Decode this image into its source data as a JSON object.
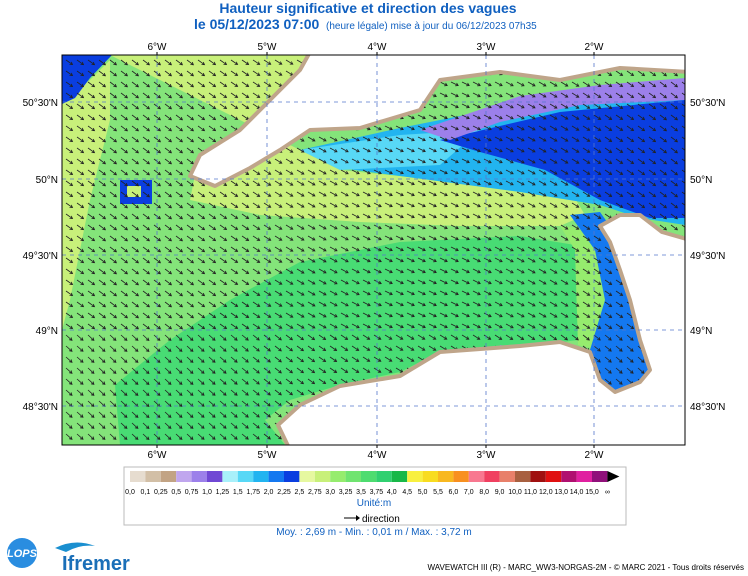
{
  "header": {
    "title": "Hauteur significative et direction des vagues",
    "date": "le 05/12/2023 07:00",
    "update_note": "(heure légale) mise à jour du 06/12/2023 07h35"
  },
  "map": {
    "longitude_labels": [
      "6°W",
      "5°W",
      "4°W",
      "3°W",
      "2°W"
    ],
    "latitude_labels": [
      "50°30'N",
      "50°N",
      "49°30'N",
      "49°N",
      "48°30'N"
    ]
  },
  "legend": {
    "labels": [
      "0,0",
      "0,1",
      "0,25",
      "0,5",
      "0,75",
      "1,0",
      "1,25",
      "1,5",
      "1,75",
      "2,0",
      "2,25",
      "2,5",
      "2,75",
      "3,0",
      "3,25",
      "3,5",
      "3,75",
      "4,0",
      "4,5",
      "5,0",
      "5,5",
      "6,0",
      "7,0",
      "8,0",
      "9,0",
      "10,0",
      "11,0",
      "12,0",
      "13,0",
      "14,0",
      "15,0",
      "∞"
    ],
    "colors": [
      "#e6dccf",
      "#d2bfa6",
      "#c2a384",
      "#c0a6ee",
      "#9c80ea",
      "#7048d4",
      "#a8f0fa",
      "#58d8f6",
      "#22b4f0",
      "#1478f0",
      "#0a3ee0",
      "#e6f8a0",
      "#c8f07a",
      "#96ec6e",
      "#70e470",
      "#4edc70",
      "#30d070",
      "#18b848",
      "#f8f040",
      "#f8dc20",
      "#f8b820",
      "#f89020",
      "#f87890",
      "#f04060",
      "#e8806a",
      "#a86040",
      "#a01010",
      "#e01010",
      "#b01070",
      "#e020a0",
      "#90107a"
    ],
    "unit": "Unité:m",
    "direction": "direction",
    "stats": "Moy. : 2,69 m  -   Min. : 0,01 m / Max. : 3,72 m"
  },
  "footer": {
    "logo_lops": "LOPS",
    "logo_ifremer": "Ifremer",
    "credits": "WAVEWATCH III (R) - MARC_WW3-NORGAS-2M - © MARC 2021 - Tous droits réservés"
  }
}
